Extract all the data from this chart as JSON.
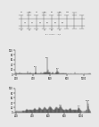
{
  "bg_color": "#e8e8e8",
  "panel_bg": "#e8e8e8",
  "top_panel": {
    "height_ratio": 0.36
  },
  "middle_panel": {
    "height_ratio": 0.32,
    "peaks": [
      [
        195,
        3
      ],
      [
        200,
        8
      ],
      [
        205,
        5
      ],
      [
        210,
        4
      ],
      [
        215,
        3
      ],
      [
        220,
        4
      ],
      [
        225,
        3
      ],
      [
        230,
        5
      ],
      [
        235,
        4
      ],
      [
        240,
        6
      ],
      [
        245,
        4
      ],
      [
        250,
        3
      ],
      [
        255,
        4
      ],
      [
        260,
        5
      ],
      [
        265,
        4
      ],
      [
        270,
        3
      ],
      [
        275,
        4
      ],
      [
        280,
        3
      ],
      [
        285,
        4
      ],
      [
        290,
        5
      ],
      [
        295,
        4
      ],
      [
        300,
        5
      ],
      [
        305,
        4
      ],
      [
        310,
        3
      ],
      [
        315,
        4
      ],
      [
        320,
        4
      ],
      [
        325,
        5
      ],
      [
        330,
        12
      ],
      [
        335,
        5
      ],
      [
        340,
        4
      ],
      [
        345,
        3
      ],
      [
        350,
        4
      ],
      [
        355,
        4
      ],
      [
        360,
        5
      ],
      [
        365,
        4
      ],
      [
        370,
        6
      ],
      [
        375,
        4
      ],
      [
        380,
        3
      ],
      [
        385,
        4
      ],
      [
        390,
        4
      ],
      [
        395,
        5
      ],
      [
        400,
        4
      ],
      [
        405,
        5
      ],
      [
        410,
        4
      ],
      [
        415,
        4
      ],
      [
        420,
        5
      ],
      [
        425,
        8
      ],
      [
        430,
        28
      ],
      [
        435,
        7
      ],
      [
        440,
        5
      ],
      [
        445,
        4
      ],
      [
        450,
        5
      ],
      [
        455,
        4
      ],
      [
        460,
        4
      ],
      [
        465,
        4
      ],
      [
        470,
        4
      ],
      [
        475,
        4
      ],
      [
        480,
        5
      ],
      [
        485,
        5
      ],
      [
        490,
        6
      ],
      [
        495,
        5
      ],
      [
        500,
        4
      ],
      [
        505,
        4
      ],
      [
        510,
        5
      ],
      [
        515,
        4
      ],
      [
        520,
        5
      ],
      [
        525,
        5
      ],
      [
        530,
        6
      ],
      [
        535,
        7
      ],
      [
        540,
        9
      ],
      [
        545,
        8
      ],
      [
        550,
        7
      ],
      [
        555,
        6
      ],
      [
        560,
        8
      ],
      [
        565,
        12
      ],
      [
        570,
        65
      ],
      [
        575,
        18
      ],
      [
        580,
        8
      ],
      [
        585,
        6
      ],
      [
        590,
        5
      ],
      [
        595,
        6
      ],
      [
        600,
        8
      ],
      [
        605,
        6
      ],
      [
        610,
        5
      ],
      [
        615,
        5
      ],
      [
        620,
        5
      ],
      [
        625,
        5
      ],
      [
        630,
        7
      ],
      [
        635,
        6
      ],
      [
        640,
        5
      ],
      [
        645,
        5
      ],
      [
        650,
        5
      ],
      [
        655,
        5
      ],
      [
        660,
        5
      ],
      [
        665,
        5
      ],
      [
        670,
        6
      ],
      [
        675,
        5
      ],
      [
        680,
        7
      ],
      [
        685,
        10
      ],
      [
        690,
        22
      ],
      [
        695,
        12
      ],
      [
        700,
        8
      ],
      [
        705,
        6
      ],
      [
        710,
        5
      ],
      [
        715,
        5
      ],
      [
        720,
        5
      ],
      [
        725,
        4
      ],
      [
        730,
        5
      ],
      [
        735,
        5
      ],
      [
        740,
        5
      ],
      [
        745,
        5
      ],
      [
        750,
        5
      ],
      [
        755,
        4
      ],
      [
        760,
        5
      ],
      [
        765,
        4
      ],
      [
        770,
        4
      ],
      [
        775,
        4
      ],
      [
        780,
        5
      ],
      [
        785,
        4
      ],
      [
        790,
        4
      ],
      [
        795,
        4
      ],
      [
        800,
        4
      ],
      [
        820,
        4
      ],
      [
        840,
        4
      ],
      [
        860,
        4
      ],
      [
        880,
        4
      ],
      [
        900,
        8
      ],
      [
        920,
        4
      ],
      [
        940,
        4
      ],
      [
        960,
        4
      ],
      [
        980,
        4
      ],
      [
        1000,
        4
      ],
      [
        1020,
        3
      ],
      [
        1040,
        3
      ],
      [
        1060,
        3
      ],
      [
        1070,
        4
      ],
      [
        1075,
        5
      ],
      [
        1080,
        5
      ]
    ],
    "labeled_peaks": [
      [
        430,
        28,
        "430"
      ],
      [
        570,
        65,
        "570"
      ],
      [
        690,
        22,
        "690"
      ]
    ],
    "xlim": [
      185,
      1090
    ],
    "ylim": [
      0,
      100
    ],
    "xticks": [
      200,
      400,
      600,
      800,
      1000
    ],
    "ytick_labels": [
      "0",
      "20",
      "40",
      "60",
      "80",
      "100"
    ]
  },
  "bottom_panel": {
    "height_ratio": 0.32,
    "peaks": [
      [
        190,
        3
      ],
      [
        195,
        4
      ],
      [
        200,
        6
      ],
      [
        205,
        5
      ],
      [
        210,
        5
      ],
      [
        215,
        4
      ],
      [
        220,
        5
      ],
      [
        225,
        4
      ],
      [
        230,
        5
      ],
      [
        235,
        4
      ],
      [
        240,
        5
      ],
      [
        245,
        4
      ],
      [
        250,
        5
      ],
      [
        255,
        4
      ],
      [
        260,
        5
      ],
      [
        265,
        4
      ],
      [
        270,
        5
      ],
      [
        275,
        5
      ],
      [
        280,
        6
      ],
      [
        285,
        5
      ],
      [
        290,
        6
      ],
      [
        295,
        5
      ],
      [
        300,
        6
      ],
      [
        305,
        5
      ],
      [
        310,
        6
      ],
      [
        315,
        7
      ],
      [
        320,
        8
      ],
      [
        325,
        9
      ],
      [
        330,
        12
      ],
      [
        335,
        10
      ],
      [
        340,
        9
      ],
      [
        345,
        8
      ],
      [
        350,
        7
      ],
      [
        355,
        8
      ],
      [
        360,
        8
      ],
      [
        365,
        9
      ],
      [
        370,
        10
      ],
      [
        375,
        9
      ],
      [
        380,
        8
      ],
      [
        385,
        7
      ],
      [
        390,
        8
      ],
      [
        395,
        7
      ],
      [
        400,
        9
      ],
      [
        405,
        8
      ],
      [
        410,
        9
      ],
      [
        415,
        10
      ],
      [
        420,
        12
      ],
      [
        425,
        14
      ],
      [
        430,
        18
      ],
      [
        435,
        15
      ],
      [
        440,
        12
      ],
      [
        445,
        10
      ],
      [
        450,
        9
      ],
      [
        455,
        8
      ],
      [
        460,
        9
      ],
      [
        465,
        10
      ],
      [
        470,
        11
      ],
      [
        475,
        12
      ],
      [
        480,
        14
      ],
      [
        485,
        16
      ],
      [
        490,
        20
      ],
      [
        495,
        18
      ],
      [
        500,
        16
      ],
      [
        505,
        14
      ],
      [
        510,
        12
      ],
      [
        515,
        10
      ],
      [
        520,
        9
      ],
      [
        525,
        10
      ],
      [
        530,
        11
      ],
      [
        535,
        12
      ],
      [
        540,
        15
      ],
      [
        545,
        18
      ],
      [
        550,
        22
      ],
      [
        555,
        20
      ],
      [
        560,
        18
      ],
      [
        565,
        16
      ],
      [
        570,
        14
      ],
      [
        575,
        12
      ],
      [
        580,
        11
      ],
      [
        585,
        10
      ],
      [
        590,
        11
      ],
      [
        595,
        12
      ],
      [
        600,
        14
      ],
      [
        605,
        16
      ],
      [
        610,
        20
      ],
      [
        615,
        22
      ],
      [
        620,
        25
      ],
      [
        625,
        22
      ],
      [
        630,
        20
      ],
      [
        635,
        18
      ],
      [
        640,
        16
      ],
      [
        645,
        14
      ],
      [
        650,
        12
      ],
      [
        655,
        10
      ],
      [
        660,
        9
      ],
      [
        665,
        8
      ],
      [
        670,
        9
      ],
      [
        675,
        10
      ],
      [
        680,
        12
      ],
      [
        685,
        14
      ],
      [
        690,
        18
      ],
      [
        695,
        20
      ],
      [
        700,
        22
      ],
      [
        705,
        20
      ],
      [
        710,
        18
      ],
      [
        715,
        16
      ],
      [
        720,
        14
      ],
      [
        725,
        12
      ],
      [
        730,
        14
      ],
      [
        735,
        16
      ],
      [
        740,
        20
      ],
      [
        745,
        24
      ],
      [
        750,
        28
      ],
      [
        755,
        24
      ],
      [
        760,
        20
      ],
      [
        765,
        16
      ],
      [
        770,
        14
      ],
      [
        775,
        12
      ],
      [
        780,
        10
      ],
      [
        785,
        9
      ],
      [
        790,
        8
      ],
      [
        795,
        7
      ],
      [
        800,
        8
      ],
      [
        805,
        9
      ],
      [
        810,
        10
      ],
      [
        815,
        11
      ],
      [
        820,
        12
      ],
      [
        825,
        11
      ],
      [
        830,
        10
      ],
      [
        835,
        9
      ],
      [
        840,
        8
      ],
      [
        845,
        7
      ],
      [
        850,
        8
      ],
      [
        855,
        9
      ],
      [
        860,
        12
      ],
      [
        865,
        14
      ],
      [
        870,
        16
      ],
      [
        875,
        14
      ],
      [
        880,
        12
      ],
      [
        885,
        10
      ],
      [
        890,
        8
      ],
      [
        895,
        7
      ],
      [
        900,
        8
      ],
      [
        905,
        9
      ],
      [
        910,
        10
      ],
      [
        915,
        9
      ],
      [
        920,
        8
      ],
      [
        925,
        7
      ],
      [
        930,
        8
      ],
      [
        935,
        9
      ],
      [
        940,
        10
      ],
      [
        945,
        9
      ],
      [
        950,
        8
      ],
      [
        955,
        7
      ],
      [
        960,
        8
      ],
      [
        965,
        9
      ],
      [
        970,
        12
      ],
      [
        975,
        16
      ],
      [
        980,
        22
      ],
      [
        985,
        18
      ],
      [
        990,
        14
      ],
      [
        995,
        10
      ],
      [
        1000,
        8
      ],
      [
        1005,
        7
      ],
      [
        1010,
        6
      ],
      [
        1020,
        5
      ],
      [
        1030,
        5
      ],
      [
        1040,
        5
      ],
      [
        1050,
        6
      ],
      [
        1060,
        7
      ],
      [
        1070,
        8
      ],
      [
        1080,
        9
      ],
      [
        1090,
        45
      ],
      [
        1095,
        35
      ],
      [
        1100,
        25
      ],
      [
        1105,
        15
      ],
      [
        1110,
        10
      ],
      [
        1115,
        7
      ],
      [
        1120,
        5
      ]
    ],
    "labeled_peaks": [
      [
        750,
        28,
        "750"
      ],
      [
        980,
        22,
        "980"
      ],
      [
        1090,
        45,
        "1090"
      ]
    ],
    "xlim": [
      185,
      1130
    ],
    "ylim": [
      0,
      100
    ],
    "xticks": [
      200,
      400,
      600,
      800,
      1000
    ],
    "ytick_labels": [
      "0",
      "20",
      "40",
      "60",
      "80",
      "100"
    ]
  },
  "line_color": "#333333",
  "tick_color": "#333333"
}
